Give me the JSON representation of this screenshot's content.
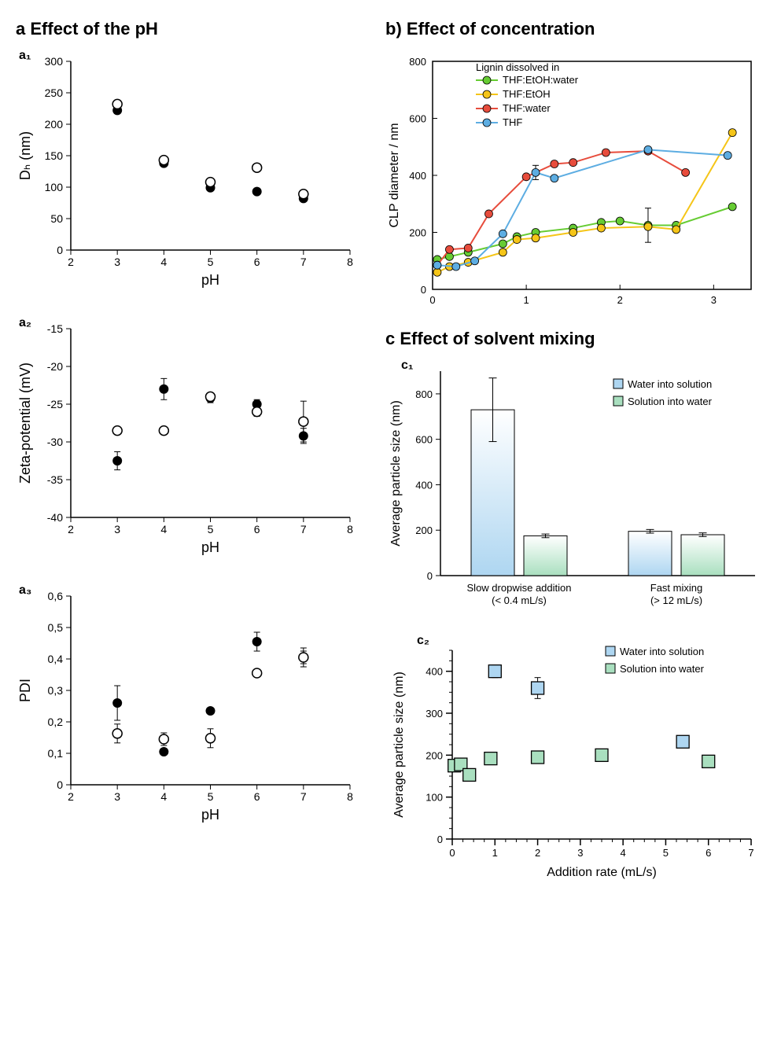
{
  "colors": {
    "black": "#000000",
    "green": "#66cc33",
    "yellow": "#f5c518",
    "red": "#e74c3c",
    "blue": "#5dade2",
    "blueFill": "#aed6f1",
    "greenFill": "#a9dfbf",
    "bg": "#ffffff"
  },
  "section_a": {
    "title": "Effect of the pH",
    "label": "a",
    "a1": {
      "label": "a₁",
      "type": "scatter",
      "xlabel": "pH",
      "ylabel": "Dₕ (nm)",
      "xlim": [
        2,
        8
      ],
      "xticks": [
        2,
        3,
        4,
        5,
        6,
        7,
        8
      ],
      "ylim": [
        0,
        300
      ],
      "yticks": [
        0,
        50,
        100,
        150,
        200,
        250,
        300
      ],
      "series": [
        {
          "name": "filled",
          "marker": "circle-filled",
          "color": "#000000",
          "points": [
            [
              3,
              222
            ],
            [
              4,
              138
            ],
            [
              5,
              99
            ],
            [
              6,
              93
            ],
            [
              7,
              82
            ]
          ],
          "err_y": [
            5,
            4,
            3,
            3,
            3
          ]
        },
        {
          "name": "open",
          "marker": "circle-open",
          "color": "#000000",
          "points": [
            [
              3,
              232
            ],
            [
              4,
              143
            ],
            [
              5,
              108
            ],
            [
              6,
              131
            ],
            [
              7,
              89
            ]
          ],
          "err_y": [
            5,
            4,
            4,
            4,
            3
          ]
        }
      ],
      "font": {
        "label": 18,
        "tick": 14
      }
    },
    "a2": {
      "label": "a₂",
      "type": "scatter",
      "xlabel": "pH",
      "ylabel": "Zeta-potential (mV)",
      "xlim": [
        2,
        8
      ],
      "xticks": [
        2,
        3,
        4,
        5,
        6,
        7,
        8
      ],
      "ylim": [
        -40,
        -15
      ],
      "yticks": [
        -40,
        -35,
        -30,
        -25,
        -20,
        -15
      ],
      "series": [
        {
          "name": "filled",
          "marker": "circle-filled",
          "color": "#000000",
          "points": [
            [
              3,
              -32.5
            ],
            [
              4,
              -23.0
            ],
            [
              5,
              -24.2
            ],
            [
              6,
              -25.0
            ],
            [
              7,
              -29.2
            ]
          ],
          "err_y": [
            1.2,
            1.4,
            0.6,
            0.6,
            1.0
          ]
        },
        {
          "name": "open",
          "marker": "circle-open",
          "color": "#000000",
          "points": [
            [
              3,
              -28.5
            ],
            [
              4,
              -28.5
            ],
            [
              5,
              -24.0
            ],
            [
              6,
              -26.0
            ],
            [
              7,
              -27.3
            ]
          ],
          "err_y": [
            0.4,
            0.4,
            0.4,
            0.6,
            2.7
          ]
        }
      ],
      "font": {
        "label": 18,
        "tick": 14
      }
    },
    "a3": {
      "label": "a₃",
      "type": "scatter",
      "xlabel": "pH",
      "ylabel": "PDI",
      "xlim": [
        2,
        8
      ],
      "xticks": [
        2,
        3,
        4,
        5,
        6,
        7,
        8
      ],
      "ylim": [
        0,
        0.6
      ],
      "yticks": [
        0,
        0.1,
        0.2,
        0.3,
        0.4,
        0.5,
        0.6
      ],
      "ytick_labels": [
        "0",
        "0,1",
        "0,2",
        "0,3",
        "0,4",
        "0,5",
        "0,6"
      ],
      "series": [
        {
          "name": "filled",
          "marker": "circle-filled",
          "color": "#000000",
          "points": [
            [
              3,
              0.26
            ],
            [
              4,
              0.105
            ],
            [
              5,
              0.235
            ],
            [
              6,
              0.455
            ],
            [
              7,
              0.405
            ]
          ],
          "err_y": [
            0.055,
            0.01,
            0.01,
            0.03,
            0.03
          ]
        },
        {
          "name": "open",
          "marker": "circle-open",
          "color": "#000000",
          "points": [
            [
              3,
              0.163
            ],
            [
              4,
              0.145
            ],
            [
              5,
              0.148
            ],
            [
              6,
              0.355
            ],
            [
              7,
              0.405
            ]
          ],
          "err_y": [
            0.03,
            0.02,
            0.03,
            0.01,
            0.02
          ]
        }
      ],
      "font": {
        "label": 18,
        "tick": 14
      }
    }
  },
  "section_b": {
    "title": "Effect of concentration",
    "label": "b)",
    "chart": {
      "type": "line-scatter",
      "xlabel": "",
      "ylabel": "CLP diameter / nm",
      "xlim": [
        0,
        3.4
      ],
      "xticks": [
        0,
        1,
        2,
        3
      ],
      "ylim": [
        0,
        800
      ],
      "yticks": [
        0,
        200,
        400,
        600,
        800
      ],
      "legend_title": "Lignin dissolved in",
      "series": [
        {
          "name": "THF:EtOH:water",
          "color": "#66cc33",
          "points": [
            [
              0.05,
              105
            ],
            [
              0.18,
              115
            ],
            [
              0.38,
              130
            ],
            [
              0.75,
              160
            ],
            [
              0.9,
              185
            ],
            [
              1.1,
              200
            ],
            [
              1.5,
              215
            ],
            [
              1.8,
              235
            ],
            [
              2.0,
              240
            ],
            [
              2.3,
              225
            ],
            [
              2.6,
              225
            ],
            [
              3.2,
              290
            ]
          ],
          "err": [
            0,
            0,
            0,
            0,
            0,
            0,
            0,
            0,
            0,
            60,
            0,
            0
          ]
        },
        {
          "name": "THF:EtOH",
          "color": "#f5c518",
          "points": [
            [
              0.05,
              60
            ],
            [
              0.18,
              80
            ],
            [
              0.38,
              95
            ],
            [
              0.75,
              130
            ],
            [
              0.9,
              175
            ],
            [
              1.1,
              180
            ],
            [
              1.5,
              200
            ],
            [
              1.8,
              215
            ],
            [
              2.3,
              220
            ],
            [
              2.6,
              210
            ],
            [
              3.2,
              550
            ]
          ],
          "err": [
            0,
            0,
            0,
            0,
            0,
            0,
            0,
            0,
            0,
            0,
            0
          ]
        },
        {
          "name": "THF:water",
          "color": "#e74c3c",
          "points": [
            [
              0.05,
              85
            ],
            [
              0.18,
              140
            ],
            [
              0.38,
              145
            ],
            [
              0.6,
              265
            ],
            [
              1.0,
              395
            ],
            [
              1.3,
              440
            ],
            [
              1.5,
              445
            ],
            [
              1.85,
              480
            ],
            [
              2.3,
              485
            ],
            [
              2.7,
              410
            ]
          ],
          "err": [
            0,
            0,
            0,
            0,
            0,
            0,
            0,
            0,
            0,
            0
          ]
        },
        {
          "name": "THF",
          "color": "#5dade2",
          "points": [
            [
              0.05,
              85
            ],
            [
              0.25,
              80
            ],
            [
              0.45,
              100
            ],
            [
              0.75,
              195
            ],
            [
              1.1,
              410
            ],
            [
              1.3,
              390
            ],
            [
              2.3,
              490
            ],
            [
              3.15,
              470
            ]
          ],
          "err": [
            0,
            0,
            0,
            0,
            25,
            0,
            0,
            0
          ]
        }
      ],
      "font": {
        "label": 16,
        "tick": 13,
        "legend": 13
      }
    }
  },
  "section_c": {
    "title": "Effect of solvent mixing",
    "label": "c",
    "c1": {
      "label": "c₁",
      "type": "bar",
      "ylabel": "Average particle size (nm)",
      "ylim": [
        0,
        900
      ],
      "yticks": [
        0,
        200,
        400,
        600,
        800
      ],
      "categories": [
        "Slow dropwise addition\n(< 0.4 mL/s)",
        "Fast mixing\n(> 12 mL/s)"
      ],
      "legend": [
        {
          "name": "Water into solution",
          "color": "#aed6f1",
          "border": "#5dade2"
        },
        {
          "name": "Solution into water",
          "color": "#a9dfbf",
          "border": "#66cc33"
        }
      ],
      "groups": [
        [
          {
            "value": 730,
            "err": 140,
            "series": 0
          },
          {
            "value": 175,
            "err": 8,
            "series": 1
          }
        ],
        [
          {
            "value": 195,
            "err": 8,
            "series": 0
          },
          {
            "value": 180,
            "err": 8,
            "series": 1
          }
        ]
      ],
      "font": {
        "label": 16,
        "tick": 13,
        "legend": 13
      }
    },
    "c2": {
      "label": "c₂",
      "type": "scatter",
      "xlabel": "Addition rate (mL/s)",
      "ylabel": "Average particle size (nm)",
      "xlim": [
        0,
        7
      ],
      "xticks": [
        0,
        1,
        2,
        3,
        4,
        5,
        6,
        7
      ],
      "xminor": 0.25,
      "ylim": [
        0,
        450
      ],
      "yticks": [
        0,
        100,
        200,
        300,
        400
      ],
      "yminor": 25,
      "legend": [
        {
          "name": "Water into solution",
          "color": "#aed6f1",
          "border": "#000000"
        },
        {
          "name": "Solution into water",
          "color": "#a9dfbf",
          "border": "#000000"
        }
      ],
      "series": [
        {
          "name": "Water into solution",
          "fill": "#aed6f1",
          "border": "#000000",
          "marker": "square",
          "points": [
            [
              1.0,
              400
            ],
            [
              2.0,
              360
            ],
            [
              5.4,
              232
            ]
          ],
          "err_y": [
            15,
            25,
            0
          ]
        },
        {
          "name": "Solution into water",
          "fill": "#a9dfbf",
          "border": "#000000",
          "marker": "square",
          "points": [
            [
              0.05,
              175
            ],
            [
              0.2,
              178
            ],
            [
              0.4,
              153
            ],
            [
              0.9,
              192
            ],
            [
              2.0,
              195
            ],
            [
              3.5,
              200
            ],
            [
              6.0,
              185
            ]
          ],
          "err_y": [
            0,
            0,
            0,
            0,
            0,
            0,
            0
          ]
        }
      ],
      "font": {
        "label": 16,
        "tick": 13,
        "legend": 13
      }
    }
  }
}
